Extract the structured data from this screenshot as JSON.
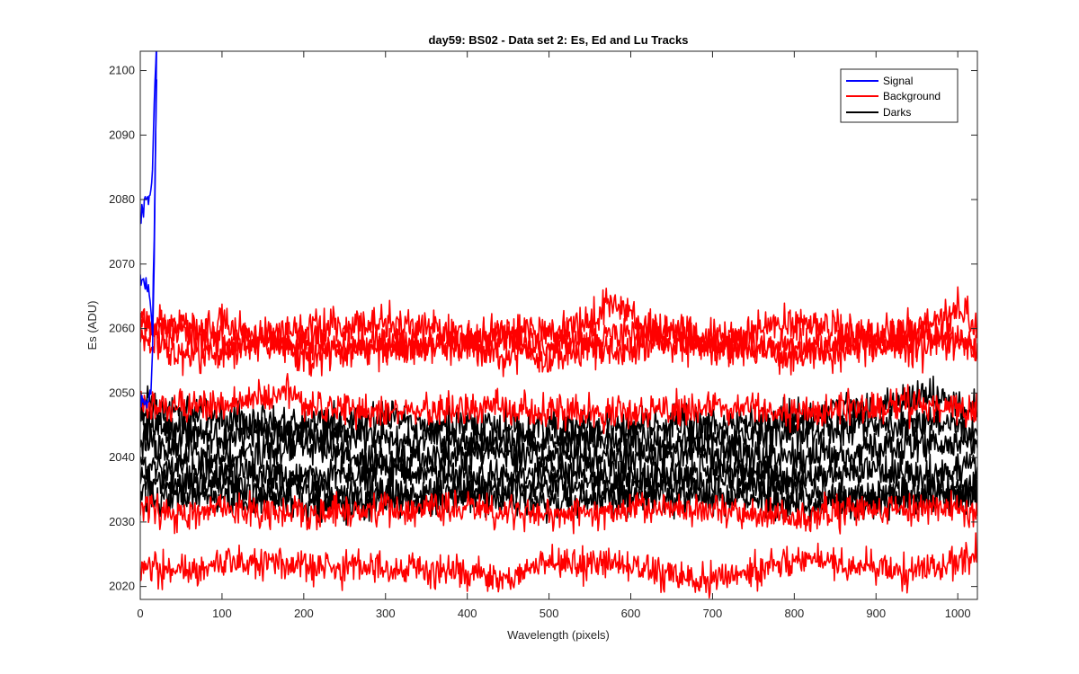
{
  "chart_data": {
    "type": "line",
    "title": "day59: BS02 - Data set 2: Es, Ed and Lu Tracks",
    "xlabel": "Wavelength (pixels)",
    "ylabel": "Es (ADU)",
    "xlim": [
      0,
      1024
    ],
    "ylim": [
      2018,
      2103
    ],
    "xticks": [
      0,
      100,
      200,
      300,
      400,
      500,
      600,
      700,
      800,
      900,
      1000
    ],
    "yticks": [
      2020,
      2030,
      2040,
      2050,
      2060,
      2070,
      2080,
      2090,
      2100
    ],
    "grid": false,
    "legend_position": "top-right",
    "legend": [
      {
        "label": "Signal",
        "color": "#0000ff"
      },
      {
        "label": "Background",
        "color": "#ff0000"
      },
      {
        "label": "Darks",
        "color": "#000000"
      }
    ],
    "series": [
      {
        "group": "Signal",
        "color": "#0000ff",
        "noise": 0.7,
        "points": [
          [
            0,
            2077
          ],
          [
            5,
            2079
          ],
          [
            10,
            2080
          ],
          [
            14,
            2082
          ],
          [
            16,
            2090
          ],
          [
            18,
            2100
          ],
          [
            20,
            2104
          ]
        ]
      },
      {
        "group": "Signal",
        "color": "#0000ff",
        "noise": 0.7,
        "points": [
          [
            0,
            2068
          ],
          [
            5,
            2067
          ],
          [
            10,
            2066
          ],
          [
            13,
            2063
          ],
          [
            15,
            2060
          ],
          [
            17,
            2075
          ],
          [
            19,
            2090
          ],
          [
            20,
            2100
          ]
        ]
      },
      {
        "group": "Signal",
        "color": "#0000ff",
        "noise": 0.6,
        "points": [
          [
            0,
            2049
          ],
          [
            5,
            2048
          ],
          [
            10,
            2049
          ],
          [
            13,
            2050
          ],
          [
            15,
            2056
          ],
          [
            17,
            2070
          ],
          [
            19,
            2092
          ],
          [
            20,
            2104
          ]
        ]
      },
      {
        "group": "Background",
        "color": "#ff0000",
        "noise": 1.4,
        "points": [
          [
            0,
            2061
          ],
          [
            50,
            2059
          ],
          [
            100,
            2061
          ],
          [
            150,
            2058
          ],
          [
            200,
            2060
          ],
          [
            300,
            2061
          ],
          [
            400,
            2059
          ],
          [
            500,
            2058
          ],
          [
            580,
            2064
          ],
          [
            650,
            2057
          ],
          [
            700,
            2058
          ],
          [
            800,
            2061
          ],
          [
            850,
            2060
          ],
          [
            900,
            2057
          ],
          [
            950,
            2059
          ],
          [
            1000,
            2063
          ],
          [
            1024,
            2060
          ]
        ]
      },
      {
        "group": "Background",
        "color": "#ff0000",
        "noise": 1.4,
        "points": [
          [
            0,
            2058
          ],
          [
            50,
            2056
          ],
          [
            100,
            2056
          ],
          [
            150,
            2059
          ],
          [
            200,
            2058
          ],
          [
            300,
            2057
          ],
          [
            400,
            2058
          ],
          [
            500,
            2060
          ],
          [
            580,
            2056
          ],
          [
            650,
            2059
          ],
          [
            700,
            2057
          ],
          [
            800,
            2057
          ],
          [
            850,
            2056
          ],
          [
            900,
            2058
          ],
          [
            950,
            2057
          ],
          [
            1000,
            2058
          ],
          [
            1024,
            2057
          ]
        ]
      },
      {
        "group": "Background",
        "color": "#ff0000",
        "noise": 1.4,
        "points": [
          [
            0,
            2061
          ],
          [
            50,
            2060
          ],
          [
            100,
            2058
          ],
          [
            150,
            2058
          ],
          [
            200,
            2056
          ],
          [
            300,
            2057
          ],
          [
            400,
            2057
          ],
          [
            500,
            2055
          ],
          [
            580,
            2059
          ],
          [
            650,
            2060
          ],
          [
            700,
            2058
          ],
          [
            800,
            2056
          ],
          [
            850,
            2058
          ],
          [
            900,
            2059
          ],
          [
            950,
            2060
          ],
          [
            1000,
            2058
          ],
          [
            1024,
            2056
          ]
        ]
      },
      {
        "group": "Background",
        "color": "#ff0000",
        "noise": 1.3,
        "points": [
          [
            0,
            2047
          ],
          [
            50,
            2048
          ],
          [
            100,
            2048
          ],
          [
            150,
            2049
          ],
          [
            180,
            2051
          ],
          [
            200,
            2048
          ],
          [
            300,
            2047
          ],
          [
            400,
            2048
          ],
          [
            500,
            2047
          ],
          [
            600,
            2047
          ],
          [
            700,
            2048
          ],
          [
            800,
            2047
          ],
          [
            900,
            2048
          ],
          [
            1000,
            2048
          ],
          [
            1024,
            2047
          ]
        ]
      },
      {
        "group": "Background",
        "color": "#ff0000",
        "noise": 1.3,
        "points": [
          [
            0,
            2032
          ],
          [
            50,
            2031
          ],
          [
            100,
            2032
          ],
          [
            200,
            2031
          ],
          [
            300,
            2032
          ],
          [
            400,
            2032
          ],
          [
            500,
            2031
          ],
          [
            600,
            2032
          ],
          [
            700,
            2032
          ],
          [
            800,
            2031
          ],
          [
            900,
            2032
          ],
          [
            1000,
            2032
          ],
          [
            1024,
            2032
          ]
        ]
      },
      {
        "group": "Background",
        "color": "#ff0000",
        "noise": 1.3,
        "points": [
          [
            0,
            2023
          ],
          [
            50,
            2022
          ],
          [
            100,
            2024
          ],
          [
            200,
            2023
          ],
          [
            300,
            2023
          ],
          [
            400,
            2022
          ],
          [
            450,
            2021
          ],
          [
            500,
            2024
          ],
          [
            600,
            2023
          ],
          [
            700,
            2021
          ],
          [
            800,
            2024
          ],
          [
            900,
            2023
          ],
          [
            950,
            2022
          ],
          [
            1000,
            2024
          ],
          [
            1024,
            2025
          ]
        ]
      },
      {
        "group": "Darks",
        "color": "#000000",
        "noise": 1.4,
        "points": [
          [
            0,
            2048
          ],
          [
            100,
            2046
          ],
          [
            200,
            2045
          ],
          [
            300,
            2046
          ],
          [
            400,
            2045
          ],
          [
            500,
            2044
          ],
          [
            600,
            2045
          ],
          [
            700,
            2045
          ],
          [
            800,
            2046
          ],
          [
            900,
            2048
          ],
          [
            950,
            2050
          ],
          [
            1000,
            2048
          ],
          [
            1024,
            2047
          ]
        ]
      },
      {
        "group": "Darks",
        "color": "#000000",
        "noise": 1.4,
        "points": [
          [
            0,
            2045
          ],
          [
            100,
            2043
          ],
          [
            200,
            2044
          ],
          [
            300,
            2043
          ],
          [
            400,
            2042
          ],
          [
            500,
            2043
          ],
          [
            600,
            2042
          ],
          [
            700,
            2043
          ],
          [
            800,
            2044
          ],
          [
            900,
            2045
          ],
          [
            1000,
            2045
          ],
          [
            1024,
            2044
          ]
        ]
      },
      {
        "group": "Darks",
        "color": "#000000",
        "noise": 1.4,
        "points": [
          [
            0,
            2042
          ],
          [
            100,
            2040
          ],
          [
            200,
            2042
          ],
          [
            300,
            2039
          ],
          [
            400,
            2041
          ],
          [
            500,
            2040
          ],
          [
            600,
            2040
          ],
          [
            700,
            2041
          ],
          [
            800,
            2040
          ],
          [
            900,
            2041
          ],
          [
            1000,
            2043
          ],
          [
            1024,
            2042
          ]
        ]
      },
      {
        "group": "Darks",
        "color": "#000000",
        "noise": 1.4,
        "points": [
          [
            0,
            2039
          ],
          [
            100,
            2038
          ],
          [
            200,
            2037
          ],
          [
            300,
            2038
          ],
          [
            400,
            2037
          ],
          [
            500,
            2038
          ],
          [
            600,
            2037
          ],
          [
            700,
            2038
          ],
          [
            800,
            2037
          ],
          [
            900,
            2038
          ],
          [
            1000,
            2038
          ],
          [
            1024,
            2039
          ]
        ]
      },
      {
        "group": "Darks",
        "color": "#000000",
        "noise": 1.4,
        "points": [
          [
            0,
            2036
          ],
          [
            100,
            2036
          ],
          [
            200,
            2035
          ],
          [
            300,
            2034
          ],
          [
            400,
            2035
          ],
          [
            500,
            2036
          ],
          [
            600,
            2035
          ],
          [
            700,
            2036
          ],
          [
            800,
            2035
          ],
          [
            900,
            2034
          ],
          [
            1000,
            2035
          ],
          [
            1024,
            2036
          ]
        ]
      },
      {
        "group": "Darks",
        "color": "#000000",
        "noise": 1.4,
        "points": [
          [
            0,
            2034
          ],
          [
            100,
            2034
          ],
          [
            200,
            2033
          ],
          [
            300,
            2033
          ],
          [
            400,
            2034
          ],
          [
            500,
            2033
          ],
          [
            600,
            2034
          ],
          [
            700,
            2034
          ],
          [
            800,
            2033
          ],
          [
            900,
            2033
          ],
          [
            1000,
            2034
          ],
          [
            1024,
            2034
          ]
        ]
      }
    ]
  }
}
